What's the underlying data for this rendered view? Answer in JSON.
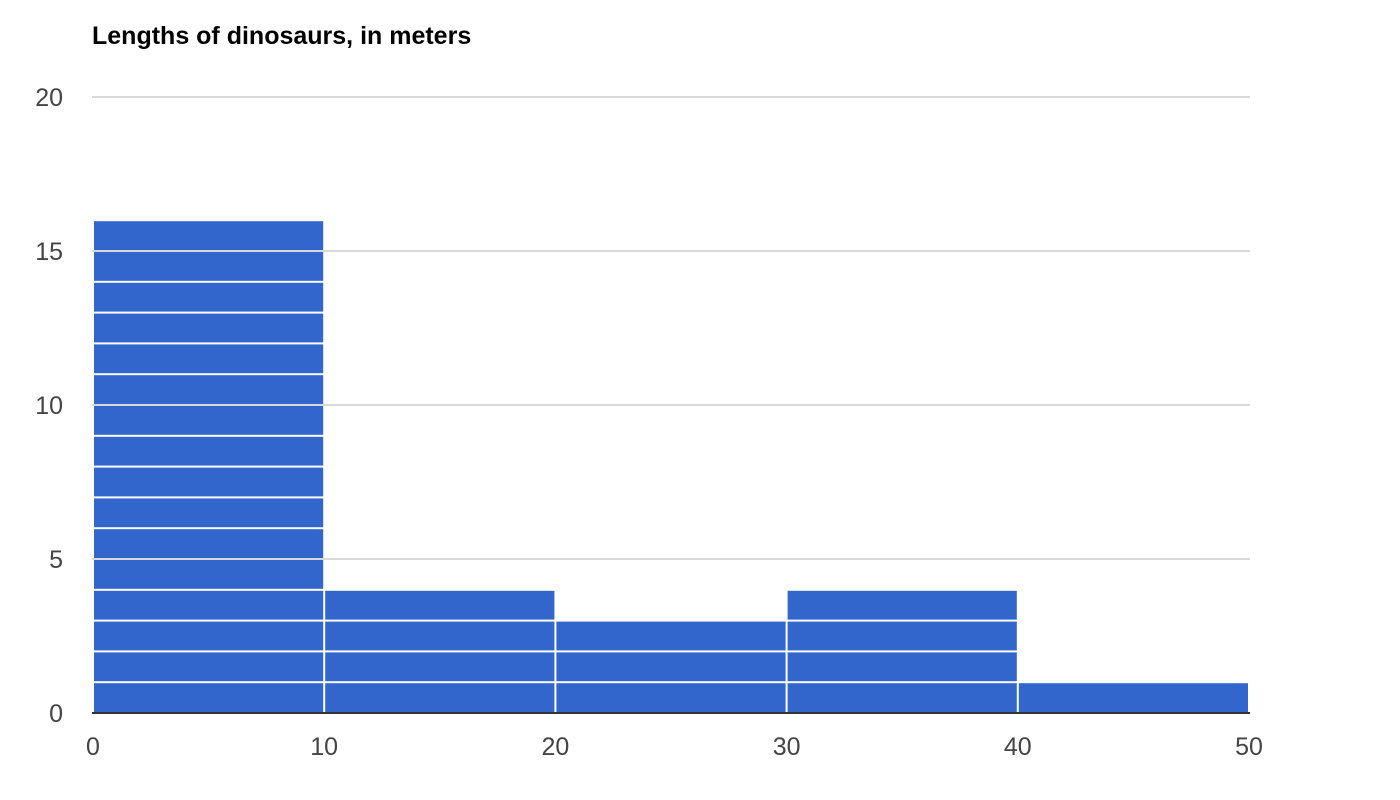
{
  "chart_data": {
    "type": "bar",
    "title": "Lengths of dinosaurs, in meters",
    "xlabel": "",
    "ylabel": "",
    "bins": [
      {
        "range": [
          0,
          10
        ],
        "count": 16
      },
      {
        "range": [
          10,
          20
        ],
        "count": 4
      },
      {
        "range": [
          20,
          30
        ],
        "count": 3
      },
      {
        "range": [
          30,
          40
        ],
        "count": 4
      },
      {
        "range": [
          40,
          50
        ],
        "count": 1
      }
    ],
    "stacked_units": true,
    "x_ticks": [
      0,
      10,
      20,
      30,
      40,
      50
    ],
    "y_ticks": [
      0,
      5,
      10,
      15,
      20
    ],
    "xlim": [
      0,
      50
    ],
    "ylim": [
      0,
      20
    ],
    "grid": true,
    "legend": "none",
    "colors": {
      "bar": "#3366cc",
      "grid": "#cccccc",
      "baseline": "#333333",
      "tick_text": "#444444",
      "title_text": "#000000"
    }
  }
}
